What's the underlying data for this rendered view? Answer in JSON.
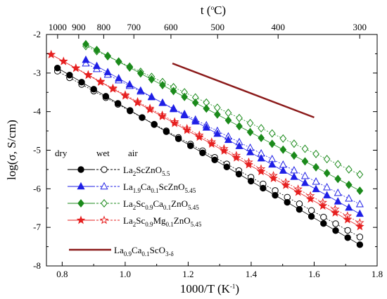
{
  "chart_data": {
    "type": "scatter",
    "title": "",
    "xlabel": "1000/T (K⁻¹)",
    "ylabel": "log(σ, S/cm)",
    "top_axis_label": "t (°C)",
    "xlim": [
      0.75,
      1.8
    ],
    "ylim": [
      -8,
      -2
    ],
    "x_ticks": [
      "0.8",
      "1.0",
      "1.2",
      "1.4",
      "1.6",
      "1.8"
    ],
    "y_ticks": [
      "-2",
      "-3",
      "-4",
      "-5",
      "-6",
      "-7",
      "-8"
    ],
    "top_ticks": [
      "1000",
      "900",
      "800",
      "700",
      "600",
      "500",
      "400",
      "300"
    ],
    "legend_header": {
      "dry": "dry",
      "wet": "wet",
      "air": "air"
    },
    "legend_placement": "bottom-left",
    "grid": false,
    "series": [
      {
        "name": "La₂ScZnO₅.₅",
        "color": "#000000",
        "marker": "circle",
        "x_range": [
          0.785,
          1.745
        ],
        "dry": [
          -2.87,
          -7.45
        ],
        "wet": [
          -2.95,
          -7.25
        ]
      },
      {
        "name": "La₁.₉Ca₀.₁ScZnO₅.₄₅",
        "color": "#1f1fe6",
        "marker": "triangle",
        "x_range": [
          0.875,
          1.745
        ],
        "dry": [
          -2.66,
          -6.65
        ],
        "wet": [
          -2.75,
          -6.4
        ]
      },
      {
        "name": "La₂Sc₀.₉Ca₀.₁ZnO₅.₄₅",
        "color": "#1b8a1b",
        "marker": "diamond",
        "x_range": [
          0.875,
          1.745
        ],
        "dry": [
          -2.25,
          -6.05
        ],
        "wet": [
          -2.3,
          -5.63
        ]
      },
      {
        "name": "La₂Sc₀.₉Mg₀.₁ZnO₅.₄₅",
        "color": "#e62020",
        "marker": "star",
        "x_range": [
          0.765,
          1.745
        ],
        "dry": [
          -2.52,
          -6.98
        ],
        "wet": [
          -2.52,
          -6.88
        ]
      }
    ],
    "reference_line": {
      "name": "La₀.₉Ca₀.₁ScO₃₋δ",
      "color": "#8b1a1a",
      "x": [
        1.15,
        1.6
      ],
      "y": [
        -2.75,
        -4.15
      ]
    }
  },
  "labels": {
    "legend_1": {
      "base": "La",
      "s1": "2",
      "mid": "ScZnO",
      "s2": "5.5"
    },
    "legend_2": {
      "a": "La",
      "s1": "1.9",
      "b": "Ca",
      "s2": "0.1",
      "c": "ScZnO",
      "s3": "5.45"
    },
    "legend_3": {
      "a": "La",
      "s1": "2",
      "b": "Sc",
      "s2": "0.9",
      "c": "Ca",
      "s3": "0.1",
      "d": "ZnO",
      "s4": "5.45"
    },
    "legend_4": {
      "a": "La",
      "s1": "2",
      "b": "Sc",
      "s2": "0.9",
      "c": "Mg",
      "s3": "0.1",
      "d": "ZnO",
      "s4": "5.45"
    },
    "legend_5": {
      "a": "La",
      "s1": "0.9",
      "b": "Ca",
      "s2": "0.1",
      "c": "ScO",
      "s3": "3-δ"
    },
    "xlabel_main": "1000/T (K",
    "xlabel_sup": "-1",
    "xlabel_end": ")",
    "top_main": "t (",
    "top_sup": "o",
    "top_end": "C)",
    "ylabel_main": "log(σ, S/cm)"
  }
}
